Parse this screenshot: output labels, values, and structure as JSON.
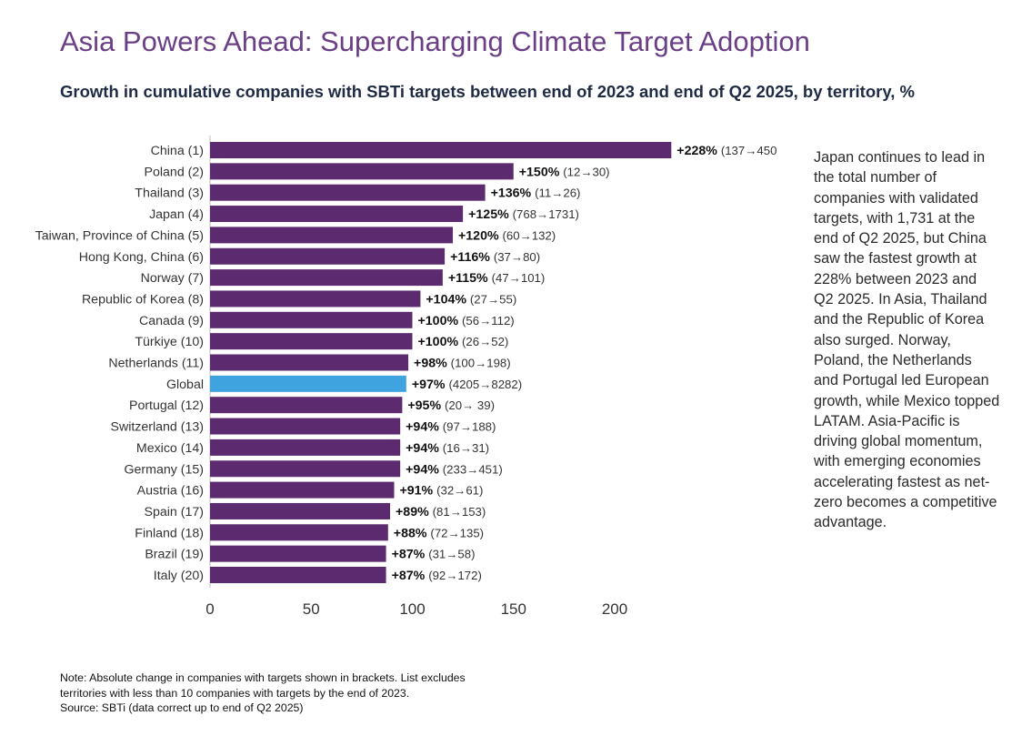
{
  "title": "Asia Powers Ahead: Supercharging Climate Target Adoption",
  "subtitle": "Growth in cumulative companies with SBTi targets between end of 2023 and end of Q2 2025, by territory, %",
  "side_note": "Japan continues to lead in the total number of companies with validated targets, with 1,731 at the end of Q2 2025, but China saw the fastest growth at 228% between 2023 and Q2 2025. In Asia, Thailand and the Republic of Korea also surged. Norway, Poland, the Netherlands and Portugal led European growth, while Mexico topped LATAM. Asia-Pacific is driving global momentum, with emerging economies accelerating fastest as net-zero becomes a competitive advantage.",
  "footnote": {
    "line1": "Note: Absolute change in companies with targets shown in brackets. List excludes",
    "line2": "territories with less than 10 companies with targets by the end of 2023.",
    "line3": "Source: SBTi (data correct up to end of Q2 2025)"
  },
  "colors": {
    "bar": "#5c2a6e",
    "highlight": "#3fa3e0",
    "title": "#6b3f86"
  },
  "chart_data": {
    "type": "bar",
    "orientation": "horizontal",
    "xlim": [
      0,
      250
    ],
    "xticks": [
      0,
      50,
      100,
      150,
      200
    ],
    "grid": false,
    "categories": [
      "China (1)",
      "Poland (2)",
      "Thailand (3)",
      "Japan (4)",
      "Taiwan, Province of China (5)",
      "Hong Kong, China (6)",
      "Norway (7)",
      "Republic of Korea (8)",
      "Canada (9)",
      "Türkiye (10)",
      "Netherlands (11)",
      "Global",
      "Portugal (12)",
      "Switzerland (13)",
      "Mexico (14)",
      "Germany (15)",
      "Austria (16)",
      "Spain (17)",
      "Finland (18)",
      "Brazil (19)",
      "Italy (20)"
    ],
    "values": [
      228,
      150,
      136,
      125,
      120,
      116,
      115,
      104,
      100,
      100,
      98,
      97,
      95,
      94,
      94,
      94,
      91,
      89,
      88,
      87,
      87
    ],
    "value_labels": [
      "+228%",
      "+150%",
      "+136%",
      "+125%",
      "+120%",
      "+116%",
      "+115%",
      "+104%",
      "+100%",
      "+100%",
      "+98%",
      "+97%",
      "+95%",
      "+94%",
      "+94%",
      "+94%",
      "+91%",
      "+89%",
      "+88%",
      "+87%",
      "+87%"
    ],
    "change_labels": [
      "(137→450",
      "(12→30)",
      "(11→26)",
      "(768→1731)",
      "(60→132)",
      "(37→80)",
      "(47→101)",
      "(27→55)",
      "(56→112)",
      "(26→52)",
      "(100→198)",
      "(4205→8282)",
      "(20→ 39)",
      "(97→188)",
      "(16→31)",
      "(233→451)",
      "(32→61)",
      "(81→153)",
      "(72→135)",
      "(31→58)",
      "(92→172)"
    ],
    "highlight": [
      "Global"
    ]
  }
}
